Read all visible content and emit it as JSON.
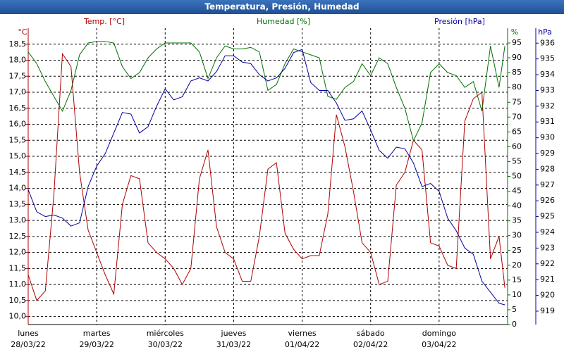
{
  "chart_data": {
    "type": "line",
    "title": "Temperatura, Presión, Humedad",
    "y_label": "Temp. [°C]",
    "y2_label": "Humedad [%]",
    "y3_label": "Presión [hPa]",
    "y_unit": "°C",
    "y2_unit": "%",
    "y3_unit": "hPa",
    "grid": true,
    "xlim": [
      0,
      7
    ],
    "xticks": [
      {
        "value": 0,
        "label": "lunes"
      },
      {
        "value": 1,
        "label": "martes"
      },
      {
        "value": 2,
        "label": "miércoles"
      },
      {
        "value": 3,
        "label": "jueves"
      },
      {
        "value": 4,
        "label": "viernes"
      },
      {
        "value": 5,
        "label": "sábado"
      },
      {
        "value": 6,
        "label": "domingo"
      }
    ],
    "xtick_dates": [
      "28/03/22",
      "29/03/22",
      "30/03/22",
      "31/03/22",
      "01/04/22",
      "02/04/22",
      "03/04/22"
    ],
    "ylim": [
      9.75,
      19
    ],
    "yticks": [
      {
        "value": 10,
        "label": "10,0"
      },
      {
        "value": 10.5,
        "label": "10,5"
      },
      {
        "value": 11,
        "label": "11,0"
      },
      {
        "value": 11.5,
        "label": "11,5"
      },
      {
        "value": 12,
        "label": "12,0"
      },
      {
        "value": 12.5,
        "label": "12,5"
      },
      {
        "value": 13,
        "label": "13,0"
      },
      {
        "value": 13.5,
        "label": "13,5"
      },
      {
        "value": 14,
        "label": "14,0"
      },
      {
        "value": 14.5,
        "label": "14,5"
      },
      {
        "value": 15,
        "label": "15,0"
      },
      {
        "value": 15.5,
        "label": "15,5"
      },
      {
        "value": 16,
        "label": "16,0"
      },
      {
        "value": 16.5,
        "label": "16,5"
      },
      {
        "value": 17,
        "label": "17,0"
      },
      {
        "value": 17.5,
        "label": "17,5"
      },
      {
        "value": 18,
        "label": "18,0"
      },
      {
        "value": 18.5,
        "label": "18,5"
      }
    ],
    "y2lim": [
      0,
      100
    ],
    "y2ticks": [
      0,
      5,
      10,
      15,
      20,
      25,
      30,
      35,
      40,
      45,
      50,
      55,
      60,
      65,
      70,
      75,
      80,
      85,
      90,
      95
    ],
    "y3lim": [
      918.15,
      936.95
    ],
    "y3ticks": [
      919,
      920,
      921,
      922,
      923,
      924,
      925,
      926,
      927,
      928,
      929,
      930,
      931,
      932,
      933,
      934,
      935,
      936
    ],
    "x": [
      0,
      0.125,
      0.25,
      0.375,
      0.5,
      0.625,
      0.75,
      0.875,
      1,
      1.125,
      1.25,
      1.375,
      1.5,
      1.625,
      1.75,
      1.875,
      2,
      2.125,
      2.25,
      2.375,
      2.5,
      2.625,
      2.75,
      2.875,
      3,
      3.125,
      3.25,
      3.375,
      3.5,
      3.625,
      3.75,
      3.875,
      4,
      4.125,
      4.25,
      4.375,
      4.5,
      4.625,
      4.75,
      4.875,
      5,
      5.125,
      5.25,
      5.375,
      5.5,
      5.625,
      5.75,
      5.875,
      6,
      6.125,
      6.25,
      6.375,
      6.5,
      6.625,
      6.75,
      6.875,
      6.96
    ],
    "series": [
      {
        "name": "Temp.",
        "color": "#b00000",
        "axis": "y",
        "values": [
          11.3,
          10.5,
          10.8,
          13.8,
          18.2,
          17.8,
          14.5,
          12.7,
          12.0,
          11.3,
          10.7,
          13.5,
          14.4,
          14.3,
          12.3,
          12.0,
          11.8,
          11.5,
          11.0,
          11.5,
          14.3,
          15.2,
          12.8,
          12.0,
          11.8,
          11.1,
          11.1,
          12.5,
          14.6,
          14.8,
          12.6,
          12.1,
          11.8,
          11.9,
          11.9,
          13.2,
          16.3,
          15.3,
          13.9,
          12.3,
          12.0,
          11.0,
          11.1,
          14.1,
          14.5,
          15.5,
          15.2,
          12.3,
          12.2,
          11.6,
          11.5,
          16.1,
          16.8,
          17.0,
          11.8,
          12.5,
          10.9
        ]
      },
      {
        "name": "Humedad",
        "color": "#007000",
        "axis": "y2",
        "values": [
          92,
          88,
          82,
          77,
          72,
          79,
          91,
          95,
          95.5,
          95.5,
          95,
          87,
          83,
          85,
          90,
          93,
          95,
          95,
          95,
          95,
          92,
          83,
          90,
          94,
          93,
          93,
          93.5,
          92,
          79,
          81,
          88,
          93,
          92,
          91,
          90,
          77,
          76,
          80,
          82,
          88,
          84,
          90,
          88,
          80,
          73,
          62,
          68,
          85,
          88,
          85,
          84,
          80,
          82,
          72,
          94,
          80,
          94
        ]
      },
      {
        "name": "Presión",
        "color": "#0000a0",
        "axis": "y3",
        "values": [
          926.7,
          925.3,
          925.0,
          925.1,
          924.9,
          924.4,
          924.6,
          926.9,
          928.2,
          929.0,
          930.3,
          931.6,
          931.5,
          930.3,
          930.7,
          932.0,
          933.1,
          932.4,
          932.6,
          933.6,
          933.8,
          933.6,
          934.2,
          935.2,
          935.2,
          934.8,
          934.7,
          934.0,
          933.6,
          933.8,
          934.4,
          935.4,
          935.6,
          933.5,
          933.0,
          933.0,
          932.2,
          931.1,
          931.2,
          931.7,
          930.5,
          929.2,
          928.7,
          929.4,
          929.3,
          928.4,
          926.9,
          927.1,
          926.6,
          924.9,
          924.1,
          923.0,
          922.6,
          920.9,
          920.2,
          919.5,
          919.4
        ]
      }
    ]
  }
}
